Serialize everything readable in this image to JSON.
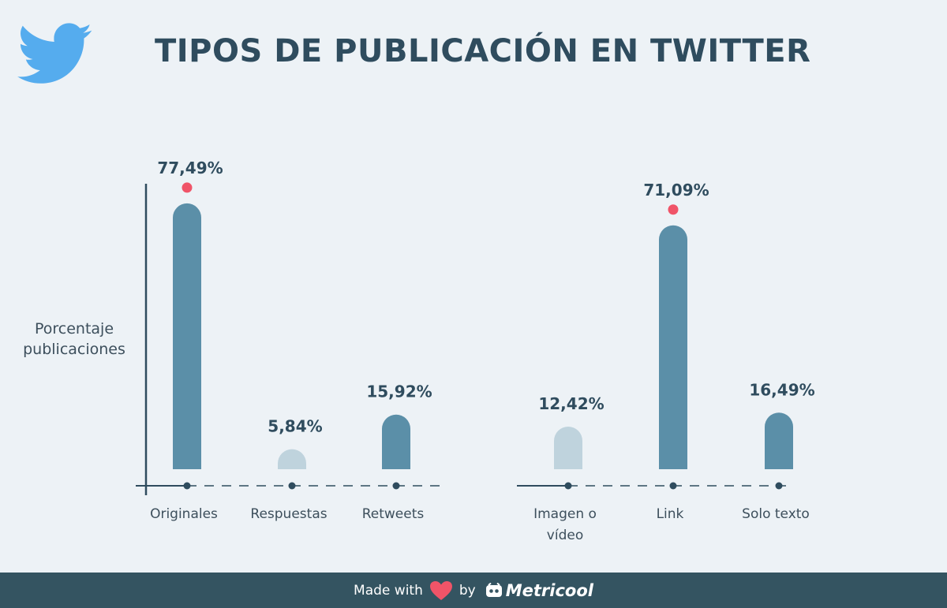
{
  "header": {
    "title": "TIPOS DE PUBLICACIÓN EN TWITTER",
    "logo_icon": "twitter-bird-icon"
  },
  "colors": {
    "background": "#edf2f6",
    "bar_dark": "#5b8fa8",
    "bar_light": "#bfd3dd",
    "highlight_dot": "#f05468",
    "axis": "#2f4c5e",
    "text": "#2f4c5e",
    "footer_bg": "#345461"
  },
  "chart_data": [
    {
      "type": "bar",
      "ylabel": "Porcentaje publicaciones",
      "ylabel_lines": [
        "Porcentaje",
        "publicaciones"
      ],
      "categories": [
        "Originales",
        "Respuestas",
        "Retweets"
      ],
      "values": [
        77.49,
        5.84,
        15.92
      ],
      "value_labels": [
        "77,49%",
        "5,84%",
        "15,92%"
      ],
      "highlight": [
        true,
        false,
        false
      ],
      "bar_style": [
        "dark",
        "light",
        "dark"
      ],
      "ylim": [
        0,
        100
      ]
    },
    {
      "type": "bar",
      "ylabel": "",
      "categories": [
        "Imagen o vídeo",
        "Link",
        "Solo texto"
      ],
      "category_lines": [
        [
          "Imagen o",
          "vídeo"
        ],
        [
          "Link"
        ],
        [
          "Solo texto"
        ]
      ],
      "values": [
        12.42,
        71.09,
        16.49
      ],
      "value_labels": [
        "12,42%",
        "71,09%",
        "16,49%"
      ],
      "highlight": [
        false,
        true,
        false
      ],
      "bar_style": [
        "light",
        "dark",
        "dark"
      ],
      "ylim": [
        0,
        100
      ]
    }
  ],
  "footer": {
    "made_with": "Made with",
    "by": "by",
    "brand": "Metricool",
    "heart_icon": "heart-icon",
    "brand_icon": "metricool-logo-icon"
  }
}
